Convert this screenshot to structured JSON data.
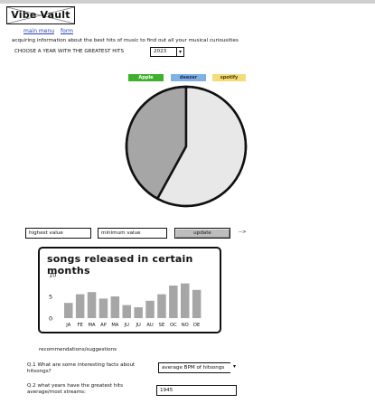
{
  "app": {
    "title": "Vibe Vault"
  },
  "nav": {
    "items": [
      {
        "label": "main menu"
      },
      {
        "label": "form"
      }
    ]
  },
  "intro": {
    "text": "acquiring information about the best hits of music to find out all your musical curiousities"
  },
  "year_selector": {
    "label": "CHOOSE A YEAR WITH THE GREATEST HITS",
    "value": "2023"
  },
  "legend": [
    {
      "label": "Apple",
      "color": "#3fb02e",
      "text_color": "#ffffff"
    },
    {
      "label": "deezer",
      "color": "#7fb2e2",
      "text_color": "#1e2a5a"
    },
    {
      "label": "spotify",
      "color": "#f4dc78",
      "text_color": "#4a3c00"
    }
  ],
  "controls": {
    "highest_placeholder": "highest value",
    "minimum_placeholder": "minimum value",
    "update_label": "update",
    "arrow": "-->"
  },
  "chart_data": [
    {
      "type": "pie",
      "labels": [
        "",
        ""
      ],
      "values": [
        42,
        58
      ],
      "colors": [
        "#a6a6a6",
        "#e8e8e8"
      ]
    },
    {
      "type": "bar",
      "title": "songs released in certain months",
      "categories": [
        "JA",
        "FE",
        "MA",
        "AP",
        "MA",
        "JU",
        "JU",
        "AU",
        "SE",
        "OC",
        "NO",
        "DE"
      ],
      "values": [
        3.5,
        5.5,
        6,
        4.5,
        5,
        3,
        2.5,
        4,
        5.5,
        7.5,
        8,
        6.5
      ],
      "ylim": [
        0,
        10
      ],
      "yticks": [
        0,
        5,
        10
      ],
      "color": "#a6a6a6"
    }
  ],
  "recommendations": {
    "heading": "recommendations/suggestions",
    "q1": {
      "label": "Q.1 What are some interesting facts about hitsongs?",
      "value": "average BPM of hitsongs"
    },
    "q2": {
      "label": "Q.2 what years have the greatest hits average/most streams:",
      "value": "1945"
    }
  }
}
